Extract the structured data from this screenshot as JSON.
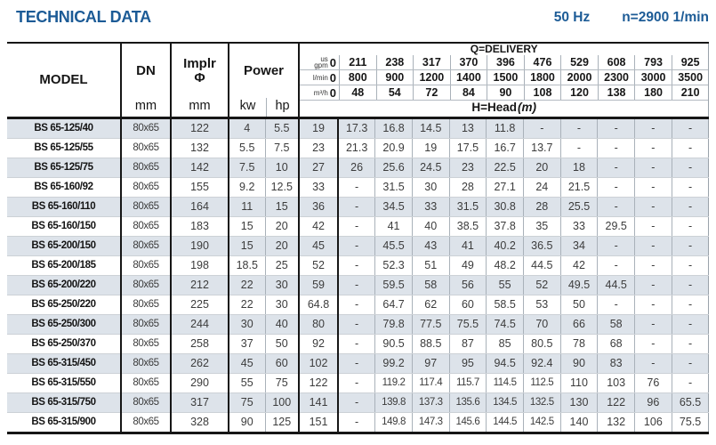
{
  "header": {
    "title": "TECHNICAL DATA",
    "frequency": "50 Hz",
    "speed": "n=2900 1/min"
  },
  "colors": {
    "accent_blue": "#1c5b96",
    "row_shade": "#dde3ea"
  },
  "table": {
    "headers": {
      "model": "MODEL",
      "dn_label": "DN",
      "dn_unit": "mm",
      "implr_line1": "Implr",
      "implr_line2": "Φ",
      "implr_unit": "mm",
      "power_label": "Power",
      "kw_label": "kw",
      "hp_label": "hp",
      "delivery_title": "Q=DELIVERY",
      "head_label": "H=Head",
      "head_unit": "(m)"
    },
    "unit_rows": [
      {
        "label_lines": [
          "us",
          "gpm"
        ],
        "zero": "0",
        "values": [
          "211",
          "238",
          "317",
          "370",
          "396",
          "476",
          "529",
          "608",
          "793",
          "925"
        ]
      },
      {
        "label_lines": [
          "l/min"
        ],
        "zero": "0",
        "values": [
          "800",
          "900",
          "1200",
          "1400",
          "1500",
          "1800",
          "2000",
          "2300",
          "3000",
          "3500"
        ]
      },
      {
        "label_lines": [
          "m³/h"
        ],
        "zero": "0",
        "values": [
          "48",
          "54",
          "72",
          "84",
          "90",
          "108",
          "120",
          "138",
          "180",
          "210"
        ]
      }
    ],
    "rows": [
      {
        "model": "BS 65-125/40",
        "dn": "80x65",
        "implr": "122",
        "kw": "4",
        "hp": "5.5",
        "head": [
          "19",
          "17.3",
          "16.8",
          "14.5",
          "13",
          "11.8",
          "-",
          "-",
          "-",
          "-",
          "-"
        ]
      },
      {
        "model": "BS 65-125/55",
        "dn": "80x65",
        "implr": "132",
        "kw": "5.5",
        "hp": "7.5",
        "head": [
          "23",
          "21.3",
          "20.9",
          "19",
          "17.5",
          "16.7",
          "13.7",
          "-",
          "-",
          "-",
          "-"
        ]
      },
      {
        "model": "BS 65-125/75",
        "dn": "80x65",
        "implr": "142",
        "kw": "7.5",
        "hp": "10",
        "head": [
          "27",
          "26",
          "25.6",
          "24.5",
          "23",
          "22.5",
          "20",
          "18",
          "-",
          "-",
          "-"
        ]
      },
      {
        "model": "BS 65-160/92",
        "dn": "80x65",
        "implr": "155",
        "kw": "9.2",
        "hp": "12.5",
        "head": [
          "33",
          "-",
          "31.5",
          "30",
          "28",
          "27.1",
          "24",
          "21.5",
          "-",
          "-",
          "-"
        ]
      },
      {
        "model": "BS 65-160/110",
        "dn": "80x65",
        "implr": "164",
        "kw": "11",
        "hp": "15",
        "head": [
          "36",
          "-",
          "34.5",
          "33",
          "31.5",
          "30.8",
          "28",
          "25.5",
          "-",
          "-",
          "-"
        ]
      },
      {
        "model": "BS 65-160/150",
        "dn": "80x65",
        "implr": "183",
        "kw": "15",
        "hp": "20",
        "head": [
          "42",
          "-",
          "41",
          "40",
          "38.5",
          "37.8",
          "35",
          "33",
          "29.5",
          "-",
          "-"
        ]
      },
      {
        "model": "BS 65-200/150",
        "dn": "80x65",
        "implr": "190",
        "kw": "15",
        "hp": "20",
        "head": [
          "45",
          "-",
          "45.5",
          "43",
          "41",
          "40.2",
          "36.5",
          "34",
          "-",
          "-",
          "-"
        ]
      },
      {
        "model": "BS 65-200/185",
        "dn": "80x65",
        "implr": "198",
        "kw": "18.5",
        "hp": "25",
        "head": [
          "52",
          "-",
          "52.3",
          "51",
          "49",
          "48.2",
          "44.5",
          "42",
          "-",
          "-",
          "-"
        ]
      },
      {
        "model": "BS 65-200/220",
        "dn": "80x65",
        "implr": "212",
        "kw": "22",
        "hp": "30",
        "head": [
          "59",
          "-",
          "59.5",
          "58",
          "56",
          "55",
          "52",
          "49.5",
          "44.5",
          "-",
          "-"
        ]
      },
      {
        "model": "BS 65-250/220",
        "dn": "80x65",
        "implr": "225",
        "kw": "22",
        "hp": "30",
        "head": [
          "64.8",
          "-",
          "64.7",
          "62",
          "60",
          "58.5",
          "53",
          "50",
          "-",
          "-",
          "-"
        ]
      },
      {
        "model": "BS 65-250/300",
        "dn": "80x65",
        "implr": "244",
        "kw": "30",
        "hp": "40",
        "head": [
          "80",
          "-",
          "79.8",
          "77.5",
          "75.5",
          "74.5",
          "70",
          "66",
          "58",
          "-",
          "-"
        ]
      },
      {
        "model": "BS 65-250/370",
        "dn": "80x65",
        "implr": "258",
        "kw": "37",
        "hp": "50",
        "head": [
          "92",
          "-",
          "90.5",
          "88.5",
          "87",
          "85",
          "80.5",
          "78",
          "68",
          "-",
          "-"
        ]
      },
      {
        "model": "BS 65-315/450",
        "dn": "80x65",
        "implr": "262",
        "kw": "45",
        "hp": "60",
        "head": [
          "102",
          "-",
          "99.2",
          "97",
          "95",
          "94.5",
          "92.4",
          "90",
          "83",
          "-",
          "-"
        ]
      },
      {
        "model": "BS 65-315/550",
        "dn": "80x65",
        "implr": "290",
        "kw": "55",
        "hp": "75",
        "head": [
          "122",
          "-",
          "119.2",
          "117.4",
          "115.7",
          "114.5",
          "112.5",
          "110",
          "103",
          "76",
          "-"
        ]
      },
      {
        "model": "BS 65-315/750",
        "dn": "80x65",
        "implr": "317",
        "kw": "75",
        "hp": "100",
        "head": [
          "141",
          "-",
          "139.8",
          "137.3",
          "135.6",
          "134.5",
          "132.5",
          "130",
          "122",
          "96",
          "65.5"
        ]
      },
      {
        "model": "BS 65-315/900",
        "dn": "80x65",
        "implr": "328",
        "kw": "90",
        "hp": "125",
        "head": [
          "151",
          "-",
          "149.8",
          "147.3",
          "145.6",
          "144.5",
          "142.5",
          "140",
          "132",
          "106",
          "75.5"
        ]
      }
    ]
  }
}
